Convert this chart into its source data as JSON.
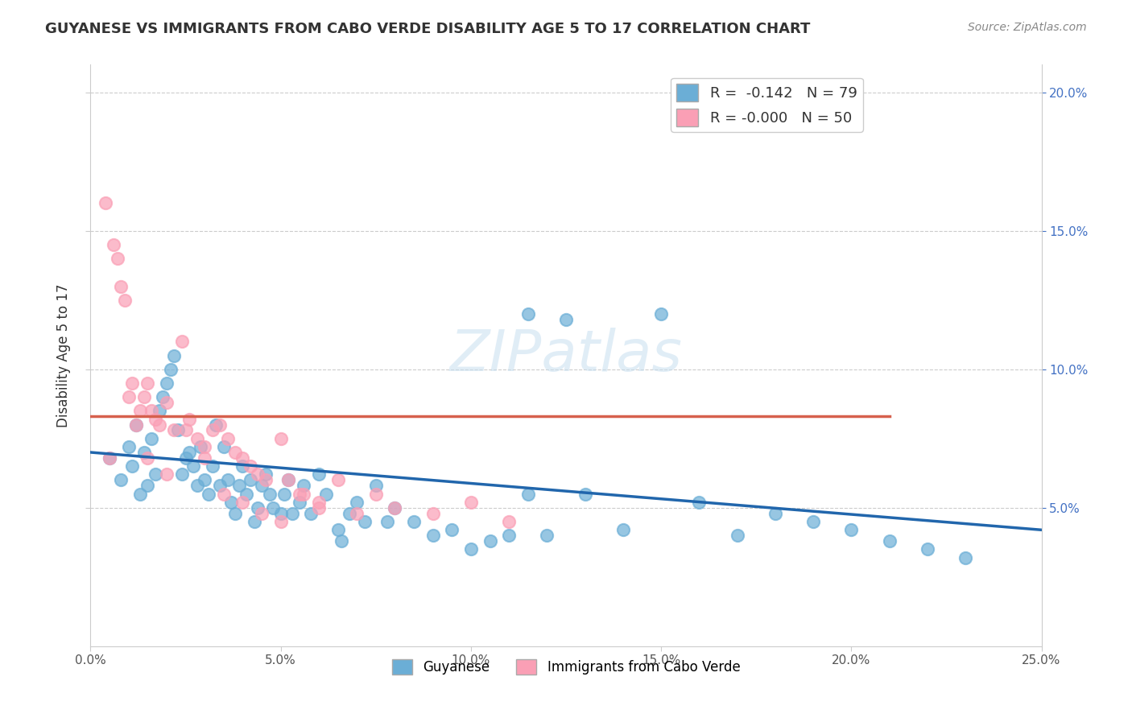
{
  "title": "GUYANESE VS IMMIGRANTS FROM CABO VERDE DISABILITY AGE 5 TO 17 CORRELATION CHART",
  "source": "Source: ZipAtlas.com",
  "xlabel_bottom": "",
  "ylabel": "Disability Age 5 to 17",
  "x_min": 0.0,
  "x_max": 0.25,
  "y_min": 0.0,
  "y_max": 0.21,
  "x_ticks": [
    0.0,
    0.05,
    0.1,
    0.15,
    0.2,
    0.25
  ],
  "x_tick_labels": [
    "0.0%",
    "5.0%",
    "10.0%",
    "15.0%",
    "20.0%",
    "25.0%"
  ],
  "y_ticks_right": [
    0.05,
    0.1,
    0.15,
    0.2
  ],
  "y_tick_labels_right": [
    "5.0%",
    "10.0%",
    "15.0%",
    "20.0%"
  ],
  "legend_r1": "R =  -0.142   N = 79",
  "legend_r2": "R = -0.000   N = 50",
  "color_blue": "#6baed6",
  "color_pink": "#fa9fb5",
  "line_blue": "#2166ac",
  "line_pink": "#d6604d",
  "watermark": "ZIPatlas",
  "legend1_label": "Guyanese",
  "legend2_label": "Immigrants from Cabo Verde",
  "blue_scatter_x": [
    0.005,
    0.008,
    0.01,
    0.011,
    0.012,
    0.013,
    0.014,
    0.015,
    0.016,
    0.017,
    0.018,
    0.019,
    0.02,
    0.021,
    0.022,
    0.023,
    0.024,
    0.025,
    0.026,
    0.027,
    0.028,
    0.029,
    0.03,
    0.031,
    0.032,
    0.033,
    0.034,
    0.035,
    0.036,
    0.037,
    0.038,
    0.039,
    0.04,
    0.041,
    0.042,
    0.043,
    0.044,
    0.045,
    0.046,
    0.047,
    0.048,
    0.05,
    0.051,
    0.052,
    0.053,
    0.055,
    0.056,
    0.058,
    0.06,
    0.062,
    0.065,
    0.066,
    0.068,
    0.07,
    0.072,
    0.075,
    0.078,
    0.08,
    0.085,
    0.09,
    0.095,
    0.1,
    0.105,
    0.11,
    0.115,
    0.12,
    0.13,
    0.14,
    0.15,
    0.16,
    0.17,
    0.18,
    0.19,
    0.2,
    0.21,
    0.22,
    0.23,
    0.115,
    0.125
  ],
  "blue_scatter_y": [
    0.068,
    0.06,
    0.072,
    0.065,
    0.08,
    0.055,
    0.07,
    0.058,
    0.075,
    0.062,
    0.085,
    0.09,
    0.095,
    0.1,
    0.105,
    0.078,
    0.062,
    0.068,
    0.07,
    0.065,
    0.058,
    0.072,
    0.06,
    0.055,
    0.065,
    0.08,
    0.058,
    0.072,
    0.06,
    0.052,
    0.048,
    0.058,
    0.065,
    0.055,
    0.06,
    0.045,
    0.05,
    0.058,
    0.062,
    0.055,
    0.05,
    0.048,
    0.055,
    0.06,
    0.048,
    0.052,
    0.058,
    0.048,
    0.062,
    0.055,
    0.042,
    0.038,
    0.048,
    0.052,
    0.045,
    0.058,
    0.045,
    0.05,
    0.045,
    0.04,
    0.042,
    0.035,
    0.038,
    0.04,
    0.055,
    0.04,
    0.055,
    0.042,
    0.12,
    0.052,
    0.04,
    0.048,
    0.045,
    0.042,
    0.038,
    0.035,
    0.032,
    0.12,
    0.118
  ],
  "pink_scatter_x": [
    0.004,
    0.005,
    0.006,
    0.007,
    0.008,
    0.009,
    0.01,
    0.011,
    0.012,
    0.013,
    0.014,
    0.015,
    0.016,
    0.017,
    0.018,
    0.02,
    0.022,
    0.024,
    0.026,
    0.028,
    0.03,
    0.032,
    0.034,
    0.036,
    0.038,
    0.04,
    0.042,
    0.044,
    0.046,
    0.05,
    0.052,
    0.056,
    0.06,
    0.065,
    0.07,
    0.075,
    0.08,
    0.09,
    0.1,
    0.11,
    0.015,
    0.02,
    0.025,
    0.03,
    0.035,
    0.04,
    0.045,
    0.05,
    0.055,
    0.06
  ],
  "pink_scatter_y": [
    0.16,
    0.068,
    0.145,
    0.14,
    0.13,
    0.125,
    0.09,
    0.095,
    0.08,
    0.085,
    0.09,
    0.095,
    0.085,
    0.082,
    0.08,
    0.088,
    0.078,
    0.11,
    0.082,
    0.075,
    0.072,
    0.078,
    0.08,
    0.075,
    0.07,
    0.068,
    0.065,
    0.062,
    0.06,
    0.075,
    0.06,
    0.055,
    0.052,
    0.06,
    0.048,
    0.055,
    0.05,
    0.048,
    0.052,
    0.045,
    0.068,
    0.062,
    0.078,
    0.068,
    0.055,
    0.052,
    0.048,
    0.045,
    0.055,
    0.05
  ],
  "blue_trend_x": [
    0.0,
    0.25
  ],
  "blue_trend_y": [
    0.07,
    0.042
  ],
  "pink_trend_x": [
    0.0,
    0.21
  ],
  "pink_trend_y": [
    0.083,
    0.083
  ]
}
